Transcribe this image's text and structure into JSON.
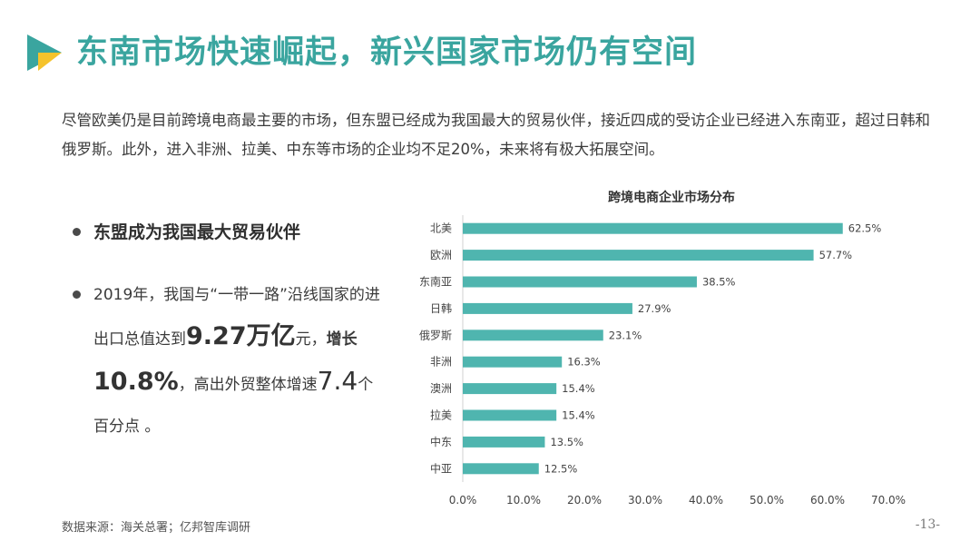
{
  "header": {
    "title": "东南市场快速崛起，新兴国家市场仍有空间"
  },
  "intro": {
    "text": "尽管欧美仍是目前跨境电商最主要的市场，但东盟已经成为我国最大的贸易伙伴，接近四成的受访企业已经进入东南亚，超过日韩和俄罗斯。此外，进入非洲、拉美、中东等市场的企业均不足20%，未来将有极大拓展空间。"
  },
  "bullets": {
    "first": "东盟成为我国最大贸易伙伴",
    "second": {
      "p1": "2019年，我国与“一带一路”沿线国家的进出口总值达到",
      "v1": "9.27万亿",
      "p2": "元，",
      "p3": "增长",
      "v2": "10.8%",
      "p4": "，高出外贸整体增速",
      "v3": "7.4",
      "p5": "个百分点 。"
    }
  },
  "chart_data": {
    "type": "bar",
    "orientation": "horizontal",
    "title": "跨境电商企业市场分布",
    "categories": [
      "北美",
      "欧洲",
      "东南亚",
      "日韩",
      "俄罗斯",
      "非洲",
      "澳洲",
      "拉美",
      "中东",
      "中亚"
    ],
    "values": [
      62.5,
      57.7,
      38.5,
      27.9,
      23.1,
      16.3,
      15.4,
      15.4,
      13.5,
      12.5
    ],
    "value_labels": [
      "62.5%",
      "57.7%",
      "38.5%",
      "27.9%",
      "23.1%",
      "16.3%",
      "15.4%",
      "15.4%",
      "13.5%",
      "12.5%"
    ],
    "xlim": [
      0,
      70
    ],
    "xticks": [
      "0.0%",
      "10.0%",
      "20.0%",
      "30.0%",
      "40.0%",
      "50.0%",
      "60.0%",
      "70.0%"
    ],
    "grid": false,
    "legend": "none",
    "bar_color": "#4fb5af"
  },
  "footer": {
    "source": "数据来源：海关总署；亿邦智库调研",
    "page": "-13-"
  },
  "colors": {
    "accent": "#3aa59f",
    "logo_teal": "#3aa59f",
    "logo_yellow": "#f5c32c"
  }
}
